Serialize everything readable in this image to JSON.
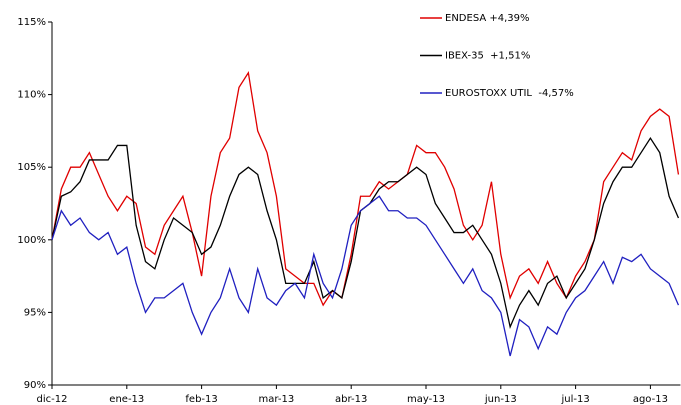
{
  "chart_data": {
    "type": "line",
    "categories": [
      "dic-12",
      null,
      null,
      null,
      null,
      null,
      null,
      null,
      "ene-13",
      null,
      null,
      null,
      null,
      null,
      null,
      null,
      "feb-13",
      null,
      null,
      null,
      null,
      null,
      null,
      null,
      "mar-13",
      null,
      null,
      null,
      null,
      null,
      null,
      null,
      "abr-13",
      null,
      null,
      null,
      null,
      null,
      null,
      null,
      "may-13",
      null,
      null,
      null,
      null,
      null,
      null,
      null,
      "jun-13",
      null,
      null,
      null,
      null,
      null,
      null,
      null,
      "jul-13",
      null,
      null,
      null,
      null,
      null,
      null,
      null,
      "ago-13",
      null,
      null,
      null
    ],
    "series": [
      {
        "name": "ENDESA +4,39%",
        "color": "#e00000",
        "values": [
          100,
          103.5,
          105,
          105,
          106,
          104.5,
          103,
          102,
          103,
          102.5,
          99.5,
          99,
          101,
          102,
          103,
          100.5,
          97.5,
          103,
          106,
          107,
          110.5,
          111.5,
          107.5,
          106,
          103,
          98,
          97.5,
          97,
          97,
          95.5,
          96.5,
          96,
          99,
          103,
          103,
          104,
          103.5,
          104,
          104.5,
          106.5,
          106,
          106,
          105,
          103.5,
          101,
          100,
          101,
          104,
          99,
          96,
          97.5,
          98,
          97,
          98.5,
          97,
          96,
          97.5,
          98.5,
          100,
          104,
          105,
          106,
          105.5,
          107.5,
          108.5,
          109,
          108.5,
          104.5
        ]
      },
      {
        "name": "IBEX-35  +1,51%",
        "color": "#000000",
        "values": [
          100,
          103,
          103.3,
          104,
          105.5,
          105.5,
          105.5,
          106.5,
          106.5,
          101,
          98.5,
          98,
          100,
          101.5,
          101,
          100.5,
          99,
          99.5,
          101,
          103,
          104.5,
          105,
          104.5,
          102,
          100,
          97,
          97,
          97,
          98.5,
          96,
          96.5,
          96,
          98.5,
          102,
          102.5,
          103.5,
          104,
          104,
          104.5,
          105,
          104.5,
          102.5,
          101.5,
          100.5,
          100.5,
          101,
          100,
          99,
          97,
          94,
          95.5,
          96.5,
          95.5,
          97,
          97.5,
          96,
          97,
          98,
          100,
          102.5,
          104,
          105,
          105,
          106,
          107,
          106,
          103,
          101.5
        ]
      },
      {
        "name": "EUROSTOXX UTIL  -4,57%",
        "color": "#2020c0",
        "values": [
          100,
          102,
          101,
          101.5,
          100.5,
          100,
          100.5,
          99,
          99.5,
          97,
          95,
          96,
          96,
          96.5,
          97,
          95,
          93.5,
          95,
          96,
          98,
          96,
          95,
          98,
          96,
          95.5,
          96.5,
          97,
          96,
          99,
          97,
          96,
          98,
          101,
          102,
          102.5,
          103,
          102,
          102,
          101.5,
          101.5,
          101,
          100,
          99,
          98,
          97,
          98,
          96.5,
          96,
          95,
          92,
          94.5,
          94,
          92.5,
          94,
          93.5,
          95,
          96,
          96.5,
          97.5,
          98.5,
          97,
          98.8,
          98.5,
          99,
          98,
          97.5,
          97,
          95.5
        ]
      }
    ],
    "ylim": [
      90,
      115
    ],
    "yticks": [
      {
        "value": 90,
        "label": "90%"
      },
      {
        "value": 95,
        "label": "95%"
      },
      {
        "value": 100,
        "label": "100%"
      },
      {
        "value": 105,
        "label": "105%"
      },
      {
        "value": 110,
        "label": "110%"
      },
      {
        "value": 115,
        "label": "115%"
      }
    ],
    "grid": false,
    "legend": "upper right"
  }
}
